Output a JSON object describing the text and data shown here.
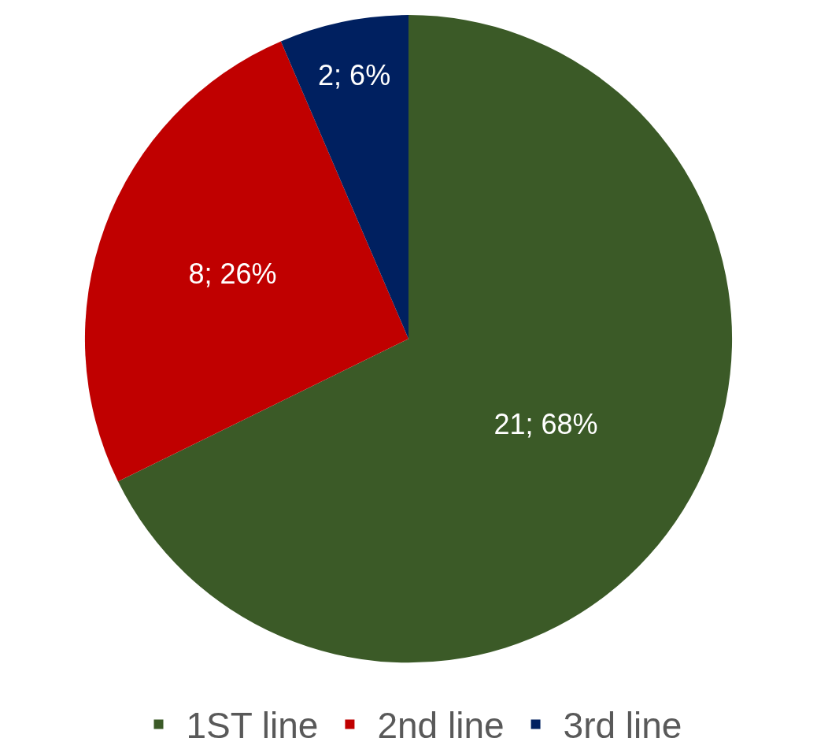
{
  "chart_data": {
    "type": "pie",
    "categories": [
      "1ST line",
      "2nd line",
      "3rd line"
    ],
    "values": [
      21,
      8,
      2
    ],
    "colors": [
      "#3b5a27",
      "#c00000",
      "#002060"
    ],
    "value_labels": [
      "21; 68%",
      "8; 26%",
      "2; 6%"
    ],
    "legend": "bottom"
  }
}
